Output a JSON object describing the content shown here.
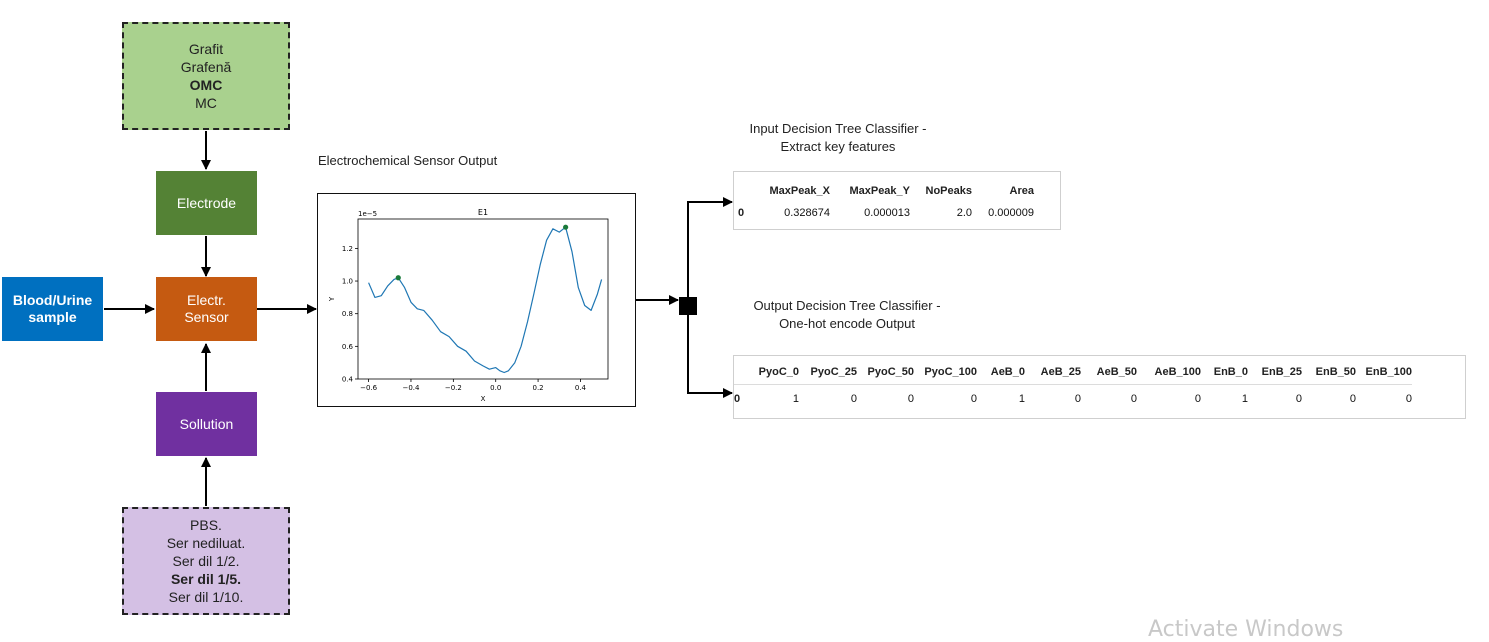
{
  "materials_box": {
    "lines": [
      {
        "text": "Grafit",
        "bold": false
      },
      {
        "text": "Grafenă",
        "bold": false
      },
      {
        "text": "OMC",
        "bold": true
      },
      {
        "text": "MC",
        "bold": false
      }
    ]
  },
  "electrode_box": {
    "label": "Electrode",
    "color": "#548235"
  },
  "sample_box": {
    "label": "Blood/Urine\nsample",
    "color": "#0070c0"
  },
  "sensor_box": {
    "label": "Electr.\nSensor",
    "color": "#c55a11"
  },
  "solution_box": {
    "label": "Sollution",
    "color": "#7030a0"
  },
  "solution_options_box": {
    "lines": [
      {
        "text": "PBS.",
        "bold": false
      },
      {
        "text": "Ser nediluat.",
        "bold": false
      },
      {
        "text": "Ser dil 1/2.",
        "bold": false
      },
      {
        "text": "Ser dil 1/5.",
        "bold": true
      },
      {
        "text": "Ser dil 1/10.",
        "bold": false
      }
    ]
  },
  "sensor_output": {
    "caption": "Electrochemical Sensor Output",
    "chart_data": {
      "type": "line",
      "title": "E1",
      "xlabel": "X",
      "ylabel": "Y",
      "offset_text": "1e−5",
      "xlim": [
        -0.65,
        0.53
      ],
      "ylim": [
        0.4,
        1.38
      ],
      "x_ticks": [
        -0.6,
        -0.4,
        -0.2,
        0.0,
        0.2,
        0.4
      ],
      "x_tick_labels": [
        "−0.6",
        "−0.4",
        "−0.2",
        "0.0",
        "0.2",
        "0.4"
      ],
      "y_ticks": [
        0.4,
        0.6,
        0.8,
        1.0,
        1.2
      ],
      "y_tick_labels": [
        "0.4",
        "0.6",
        "0.8",
        "1.0",
        "1.2"
      ],
      "line_color": "#1f77b4",
      "peak_color": "#1a7a3a",
      "x": [
        -0.6,
        -0.57,
        -0.54,
        -0.51,
        -0.48,
        -0.46,
        -0.43,
        -0.4,
        -0.37,
        -0.34,
        -0.3,
        -0.26,
        -0.22,
        -0.18,
        -0.14,
        -0.1,
        -0.06,
        -0.03,
        0.0,
        0.02,
        0.04,
        0.06,
        0.09,
        0.12,
        0.15,
        0.18,
        0.21,
        0.24,
        0.27,
        0.3,
        0.33,
        0.36,
        0.39,
        0.42,
        0.45,
        0.48,
        0.5
      ],
      "y": [
        0.99,
        0.9,
        0.91,
        0.97,
        1.01,
        1.02,
        0.96,
        0.87,
        0.83,
        0.82,
        0.76,
        0.69,
        0.66,
        0.6,
        0.57,
        0.51,
        0.48,
        0.46,
        0.47,
        0.45,
        0.44,
        0.45,
        0.5,
        0.6,
        0.75,
        0.92,
        1.1,
        1.25,
        1.32,
        1.3,
        1.33,
        1.18,
        0.96,
        0.85,
        0.82,
        0.92,
        1.01
      ],
      "peaks": [
        {
          "x": -0.46,
          "y": 1.02
        },
        {
          "x": 0.33,
          "y": 1.33
        }
      ]
    }
  },
  "input_table": {
    "caption_line1": "Input Decision Tree Classifier -",
    "caption_line2": "Extract key features",
    "columns": [
      "MaxPeak_X",
      "MaxPeak_Y",
      "NoPeaks",
      "Area"
    ],
    "row_index": "0",
    "row": [
      "0.328674",
      "0.000013",
      "2.0",
      "0.000009"
    ]
  },
  "output_table": {
    "caption_line1": "Output Decision Tree Classifier -",
    "caption_line2": "One-hot encode Output",
    "columns": [
      "PyoC_0",
      "PyoC_25",
      "PyoC_50",
      "PyoC_100",
      "AeB_0",
      "AeB_25",
      "AeB_50",
      "AeB_100",
      "EnB_0",
      "EnB_25",
      "EnB_50",
      "EnB_100"
    ],
    "row_index": "0",
    "row": [
      "1",
      "0",
      "0",
      "0",
      "1",
      "0",
      "0",
      "0",
      "1",
      "0",
      "0",
      "0"
    ]
  },
  "watermark": "Activate Windows"
}
